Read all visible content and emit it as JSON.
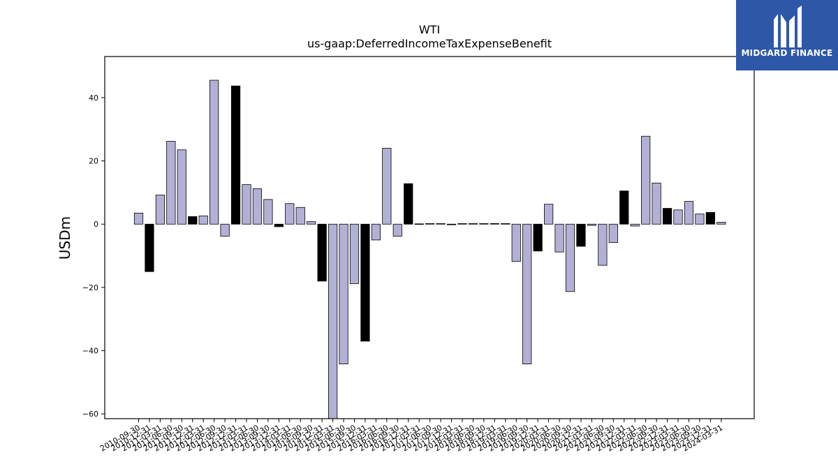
{
  "logo": {
    "text": "MIDGARD FINANCE",
    "background": "#2d58a8"
  },
  "chart_data": {
    "type": "bar",
    "title": "WTI",
    "subtitle": "us-gaap:DeferredIncomeTaxExpenseBenefit",
    "xlabel": "",
    "ylabel": "USDm",
    "ylim": [
      -61.5,
      53
    ],
    "yticks": [
      -60,
      -40,
      -20,
      0,
      20,
      40
    ],
    "grid": false,
    "colors": {
      "default": "#b3b0d6",
      "highlight": "#000000",
      "edge": "#000000"
    },
    "categories": [
      "2010-09-30",
      "2010-12-31",
      "2011-03-31",
      "2011-06-30",
      "2011-09-30",
      "2011-12-31",
      "2012-03-31",
      "2012-06-30",
      "2012-09-30",
      "2012-12-31",
      "2013-03-31",
      "2013-06-30",
      "2013-09-30",
      "2013-12-31",
      "2014-03-31",
      "2014-06-30",
      "2014-09-30",
      "2014-12-31",
      "2015-03-31",
      "2015-06-30",
      "2015-09-30",
      "2015-12-31",
      "2016-03-31",
      "2016-06-30",
      "2016-09-30",
      "2016-12-31",
      "2017-03-31",
      "2017-06-30",
      "2017-09-30",
      "2017-12-31",
      "2018-03-31",
      "2018-06-30",
      "2018-09-30",
      "2018-12-31",
      "2019-03-31",
      "2019-06-30",
      "2019-09-30",
      "2019-12-31",
      "2020-03-31",
      "2020-06-30",
      "2020-09-30",
      "2020-12-31",
      "2021-03-31",
      "2021-06-30",
      "2021-09-30",
      "2021-12-31",
      "2022-03-31",
      "2022-06-30",
      "2022-09-30",
      "2022-12-31",
      "2023-03-31",
      "2023-06-30",
      "2023-09-30",
      "2023-12-31",
      "2024-03-31"
    ],
    "values": [
      3.5,
      -15,
      9.2,
      26.2,
      23.5,
      2.4,
      2.6,
      45.5,
      -3.8,
      43.7,
      12.5,
      11.2,
      7.8,
      -0.8,
      6.5,
      5.3,
      0.8,
      -18,
      -62,
      -44.2,
      -18.8,
      -37,
      -5,
      24,
      -3.8,
      12.8,
      0.1,
      0.2,
      0.2,
      -0.2,
      0.2,
      0.2,
      0.2,
      0.2,
      0.2,
      -11.8,
      -44.2,
      -8.5,
      6.3,
      -8.8,
      -21.3,
      -7,
      -0.4,
      -13,
      -5.8,
      10.5,
      -0.6,
      27.8,
      13,
      5,
      4.5,
      7.2,
      3.2,
      3.7,
      0.6
    ],
    "highlight": [
      false,
      true,
      false,
      false,
      false,
      true,
      false,
      false,
      false,
      true,
      false,
      false,
      false,
      true,
      false,
      false,
      false,
      true,
      false,
      false,
      false,
      true,
      false,
      false,
      false,
      true,
      false,
      false,
      false,
      true,
      false,
      false,
      false,
      true,
      false,
      false,
      false,
      true,
      false,
      false,
      false,
      true,
      false,
      false,
      false,
      true,
      false,
      false,
      false,
      true,
      false,
      false,
      false,
      true,
      false
    ]
  }
}
